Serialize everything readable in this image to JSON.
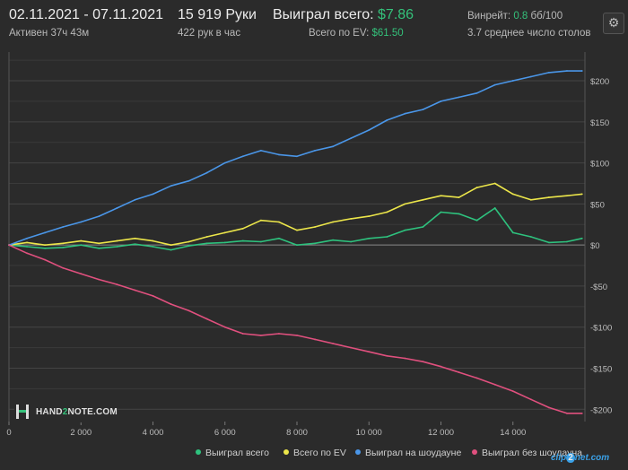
{
  "header": {
    "date_range": "02.11.2021 - 07.11.2021",
    "active": "Активен 37ч 43м",
    "hands": "15 919 Руки",
    "hands_per_hour": "422 рук в час",
    "won_label": "Выиграл всего:",
    "won_value": "$7.86",
    "ev_label": "Всего по EV:",
    "ev_value": "$61.50",
    "winrate_label": "Винрейт:",
    "winrate_value": "0.8",
    "winrate_unit": "бб/100",
    "tables": "3.7 среднее число столов"
  },
  "settings_icon": "gear-icon",
  "watermark": {
    "brand_a": "HAND",
    "brand_b": "2",
    "brand_c": "NOTE.COM"
  },
  "clip_watermark": {
    "a": "clip",
    "b": "2",
    "c": "net.com"
  },
  "colors": {
    "bg": "#2b2b2b",
    "grid": "#444444",
    "won": "#2ec27e",
    "ev": "#ece64a",
    "showdown": "#4a96e8",
    "non_showdown": "#e0507e"
  },
  "chart_data": {
    "type": "line",
    "x_ticks": [
      "0",
      "2 000",
      "4 000",
      "6 000",
      "8 000",
      "10 000",
      "12 000",
      "14 000"
    ],
    "y_ticks": [
      "$200",
      "$150",
      "$100",
      "$50",
      "$0",
      "-$50",
      "-$100",
      "-$150",
      "-$200"
    ],
    "xlim": [
      0,
      16000
    ],
    "ylim": [
      -215,
      235
    ],
    "grid": true,
    "legend_position": "bottom-right",
    "series": [
      {
        "name": "Выиграл всего",
        "color": "#2ec27e",
        "x": [
          0,
          500,
          1000,
          1500,
          2000,
          2500,
          3000,
          3500,
          4000,
          4500,
          5000,
          5500,
          6000,
          6500,
          7000,
          7500,
          8000,
          8500,
          9000,
          9500,
          10000,
          10500,
          11000,
          11500,
          12000,
          12500,
          13000,
          13500,
          14000,
          14500,
          15000,
          15500,
          15919
        ],
        "values": [
          0,
          -2,
          -4,
          -3,
          0,
          -4,
          -2,
          1,
          -2,
          -6,
          -1,
          2,
          3,
          5,
          4,
          8,
          0,
          2,
          6,
          4,
          8,
          10,
          18,
          22,
          40,
          38,
          30,
          45,
          15,
          10,
          3,
          4,
          8
        ]
      },
      {
        "name": "Всего по EV",
        "color": "#ece64a",
        "x": [
          0,
          500,
          1000,
          1500,
          2000,
          2500,
          3000,
          3500,
          4000,
          4500,
          5000,
          5500,
          6000,
          6500,
          7000,
          7500,
          8000,
          8500,
          9000,
          9500,
          10000,
          10500,
          11000,
          11500,
          12000,
          12500,
          13000,
          13500,
          14000,
          14500,
          15000,
          15500,
          15919
        ],
        "values": [
          0,
          3,
          0,
          2,
          5,
          2,
          5,
          8,
          5,
          0,
          4,
          10,
          15,
          20,
          30,
          28,
          18,
          22,
          28,
          32,
          35,
          40,
          50,
          55,
          60,
          58,
          70,
          75,
          62,
          55,
          58,
          60,
          62
        ]
      },
      {
        "name": "Выиграл на шоудауне",
        "color": "#4a96e8",
        "x": [
          0,
          500,
          1000,
          1500,
          2000,
          2500,
          3000,
          3500,
          4000,
          4500,
          5000,
          5500,
          6000,
          6500,
          7000,
          7500,
          8000,
          8500,
          9000,
          9500,
          10000,
          10500,
          11000,
          11500,
          12000,
          12500,
          13000,
          13500,
          14000,
          14500,
          15000,
          15500,
          15919
        ],
        "values": [
          0,
          8,
          15,
          22,
          28,
          35,
          45,
          55,
          62,
          72,
          78,
          88,
          100,
          108,
          115,
          110,
          108,
          115,
          120,
          130,
          140,
          152,
          160,
          165,
          175,
          180,
          185,
          195,
          200,
          205,
          210,
          212,
          212
        ]
      },
      {
        "name": "Выиграл без шоудауна",
        "color": "#e0507e",
        "x": [
          0,
          500,
          1000,
          1500,
          2000,
          2500,
          3000,
          3500,
          4000,
          4500,
          5000,
          5500,
          6000,
          6500,
          7000,
          7500,
          8000,
          8500,
          9000,
          9500,
          10000,
          10500,
          11000,
          11500,
          12000,
          12500,
          13000,
          13500,
          14000,
          14500,
          15000,
          15500,
          15919
        ],
        "values": [
          0,
          -10,
          -18,
          -28,
          -35,
          -42,
          -48,
          -55,
          -62,
          -72,
          -80,
          -90,
          -100,
          -108,
          -110,
          -108,
          -110,
          -115,
          -120,
          -125,
          -130,
          -135,
          -138,
          -142,
          -148,
          -155,
          -162,
          -170,
          -178,
          -188,
          -198,
          -205,
          -205
        ]
      }
    ]
  }
}
